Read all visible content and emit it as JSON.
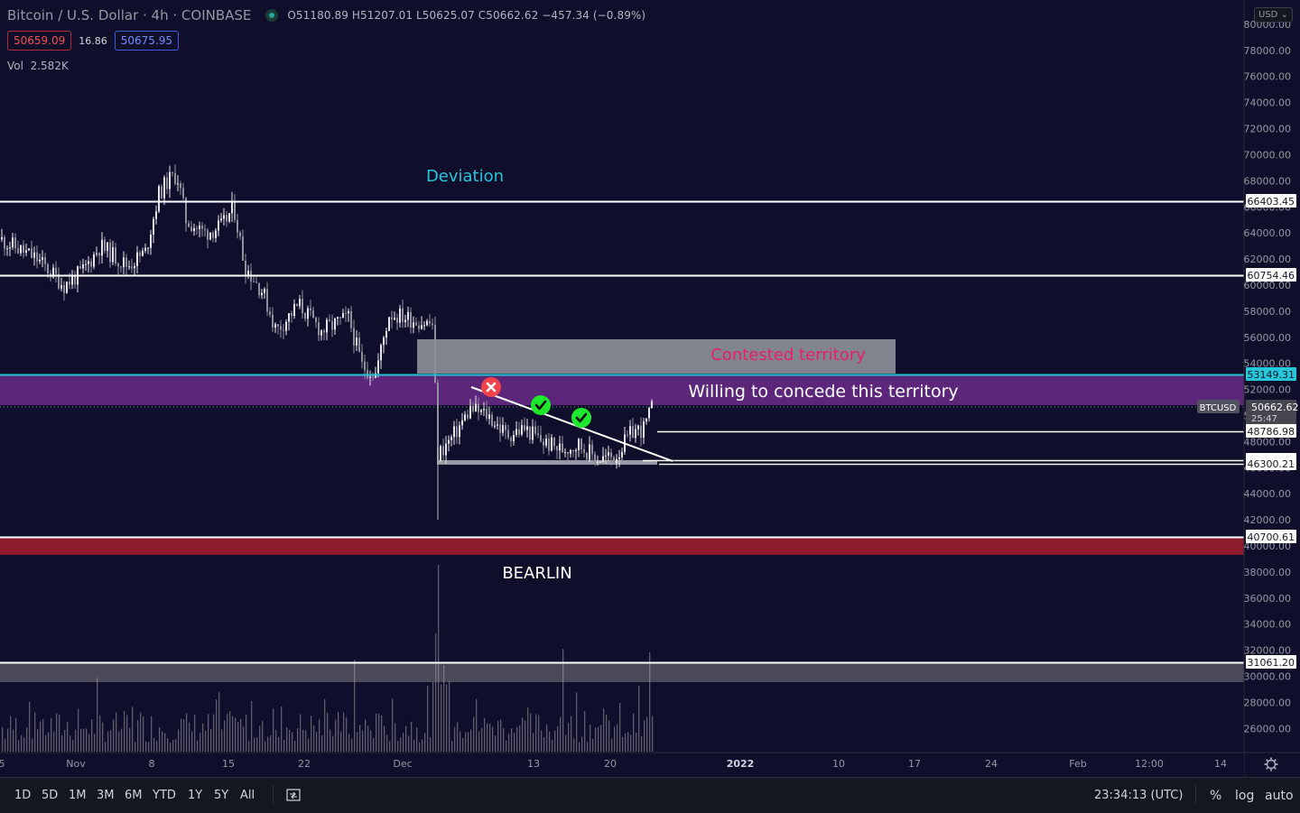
{
  "header": {
    "symbol_title": "Bitcoin / U.S. Dollar · 4h · COINBASE",
    "ohlc": "O51180.89 H51207.01 L50625.07 C50662.62 −457.34 (−0.89%)",
    "bid": "50659.09",
    "spread": "16.86",
    "ask": "50675.95",
    "vol_label": "Vol",
    "vol_value": "2.582K",
    "currency_button": "USD"
  },
  "chart_data": {
    "type": "candlestick",
    "ylim": [
      24000,
      82000
    ],
    "y_ticks": [
      26000,
      28000,
      30000,
      32000,
      34000,
      36000,
      38000,
      40000,
      42000,
      44000,
      46000,
      48000,
      50000,
      52000,
      54000,
      56000,
      58000,
      60000,
      62000,
      64000,
      66000,
      68000,
      70000,
      72000,
      74000,
      76000,
      78000,
      80000
    ],
    "x_ticks": [
      {
        "label": "5",
        "x": 2
      },
      {
        "label": "Nov",
        "x": 84
      },
      {
        "label": "8",
        "x": 168
      },
      {
        "label": "15",
        "x": 253
      },
      {
        "label": "22",
        "x": 337
      },
      {
        "label": "Dec",
        "x": 446
      },
      {
        "label": "13",
        "x": 591
      },
      {
        "label": "20",
        "x": 676
      },
      {
        "label": "2022",
        "x": 820,
        "bold": true
      },
      {
        "label": "10",
        "x": 929
      },
      {
        "label": "17",
        "x": 1013
      },
      {
        "label": "24",
        "x": 1098
      },
      {
        "label": "Feb",
        "x": 1194
      },
      {
        "label": "12:00",
        "x": 1273
      },
      {
        "label": "14",
        "x": 1352
      }
    ],
    "path": [
      [
        0,
        63500
      ],
      [
        40,
        62000
      ],
      [
        70,
        60000
      ],
      [
        90,
        61000
      ],
      [
        110,
        63000
      ],
      [
        140,
        61500
      ],
      [
        160,
        62500
      ],
      [
        175,
        67000
      ],
      [
        185,
        68000
      ],
      [
        195,
        68500
      ],
      [
        205,
        65000
      ],
      [
        225,
        64000
      ],
      [
        245,
        64500
      ],
      [
        258,
        66000
      ],
      [
        270,
        61500
      ],
      [
        290,
        59500
      ],
      [
        305,
        56500
      ],
      [
        330,
        58500
      ],
      [
        355,
        56500
      ],
      [
        385,
        57500
      ],
      [
        400,
        53800
      ],
      [
        415,
        53200
      ],
      [
        430,
        57800
      ],
      [
        445,
        57600
      ],
      [
        465,
        57200
      ],
      [
        478,
        57000
      ],
      [
        484,
        47000
      ],
      [
        500,
        48300
      ],
      [
        520,
        50500
      ],
      [
        540,
        50000
      ],
      [
        560,
        48500
      ],
      [
        580,
        49000
      ],
      [
        600,
        48000
      ],
      [
        620,
        47400
      ],
      [
        640,
        47800
      ],
      [
        660,
        46700
      ],
      [
        680,
        46800
      ],
      [
        700,
        48800
      ],
      [
        712,
        49000
      ],
      [
        722,
        50662
      ]
    ],
    "price_lines": [
      {
        "price": 66403.45,
        "label": "66403.45"
      },
      {
        "price": 60754.46,
        "label": "60754.46"
      },
      {
        "price": 53149.31,
        "label": "53149.31",
        "color": "#26c6da"
      },
      {
        "price": 48786.98,
        "label": "48786.98"
      },
      {
        "price": 46602.24,
        "label": "46602.24"
      },
      {
        "price": 46300.21,
        "label": "46300.21"
      },
      {
        "price": 40700.61,
        "label": "40700.61"
      },
      {
        "price": 31061.2,
        "label": "31061.20"
      }
    ],
    "last_price": {
      "symbol": "BTCUSD",
      "price": "50662.62",
      "countdown": "25:47"
    },
    "annotations": [
      {
        "text": "Deviation",
        "color": "#26c6da"
      },
      {
        "text": "Contested territory",
        "color": "#e91e63"
      },
      {
        "text": "Willing to concede this territory",
        "color": "#ffffff"
      },
      {
        "text": "BEARLIN",
        "color": "#ffffff"
      }
    ]
  },
  "colors": {
    "bg": "#100f2b",
    "purple_zone": "#6a2a8a",
    "grey_zone": "#9598a1",
    "red_zone": "#8e1b2b",
    "white_line": "#ffffff",
    "cyan_line": "#26c6da"
  },
  "bottom_bar": {
    "ranges": [
      "1D",
      "5D",
      "1M",
      "3M",
      "6M",
      "YTD",
      "1Y",
      "5Y",
      "All"
    ],
    "time": "23:34:13 (UTC)",
    "percent": "%",
    "log": "log",
    "auto": "auto"
  }
}
